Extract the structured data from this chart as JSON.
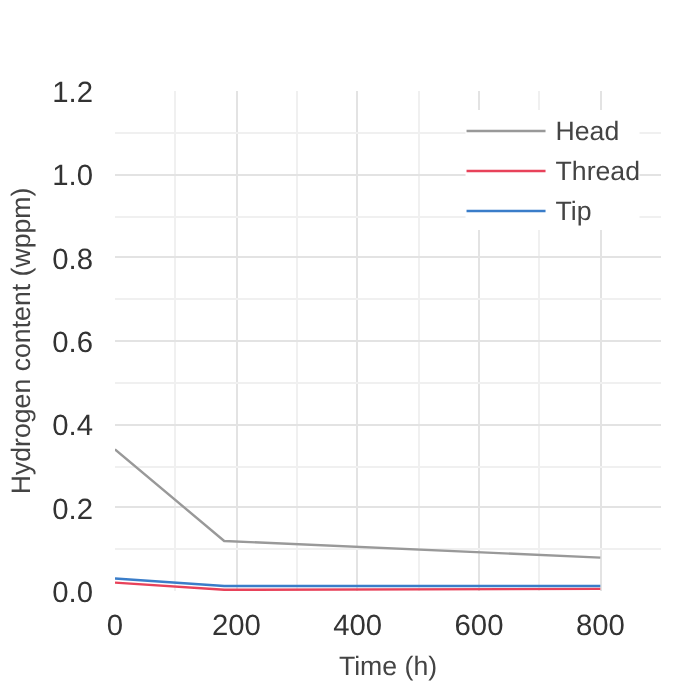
{
  "chart_data": {
    "type": "line",
    "xlabel": "Time (h)",
    "ylabel": "Hydrogen content (wppm)",
    "x": [
      0,
      180,
      800
    ],
    "series": [
      {
        "name": "Head",
        "color": "#999999",
        "values": [
          0.34,
          0.12,
          0.08
        ]
      },
      {
        "name": "Thread",
        "color": "#e8425a",
        "values": [
          0.02,
          0.003,
          0.005
        ]
      },
      {
        "name": "Tip",
        "color": "#3a7dc9",
        "values": [
          0.03,
          0.012,
          0.012
        ]
      }
    ],
    "xlim": [
      0,
      900
    ],
    "ylim": [
      0,
      1.2
    ],
    "xticks": [
      0,
      200,
      400,
      600,
      800
    ],
    "yticks": [
      {
        "value": 0,
        "label": "0.0"
      },
      {
        "value": 0.2,
        "label": "0.2"
      },
      {
        "value": 0.4,
        "label": "0.4"
      },
      {
        "value": 0.6,
        "label": "0.6"
      },
      {
        "value": 0.8,
        "label": "0.8"
      },
      {
        "value": 1.0,
        "label": "1.0"
      },
      {
        "value": 1.2,
        "label": "1.2"
      }
    ],
    "grid": true,
    "legend": "top right"
  }
}
